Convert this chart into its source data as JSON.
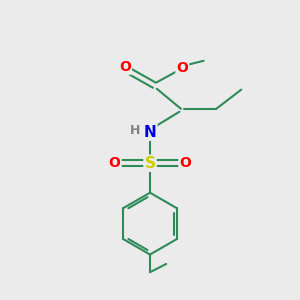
{
  "bg_color": "#ebebeb",
  "bond_color": "#2e8b57",
  "bond_width": 1.5,
  "atom_colors": {
    "O": "#ff0000",
    "N": "#0000ee",
    "S": "#cccc00",
    "C": "#2e8b57",
    "H": "#808080"
  },
  "figsize": [
    3.0,
    3.0
  ],
  "dpi": 100,
  "xlim": [
    0,
    10
  ],
  "ylim": [
    0,
    10
  ]
}
